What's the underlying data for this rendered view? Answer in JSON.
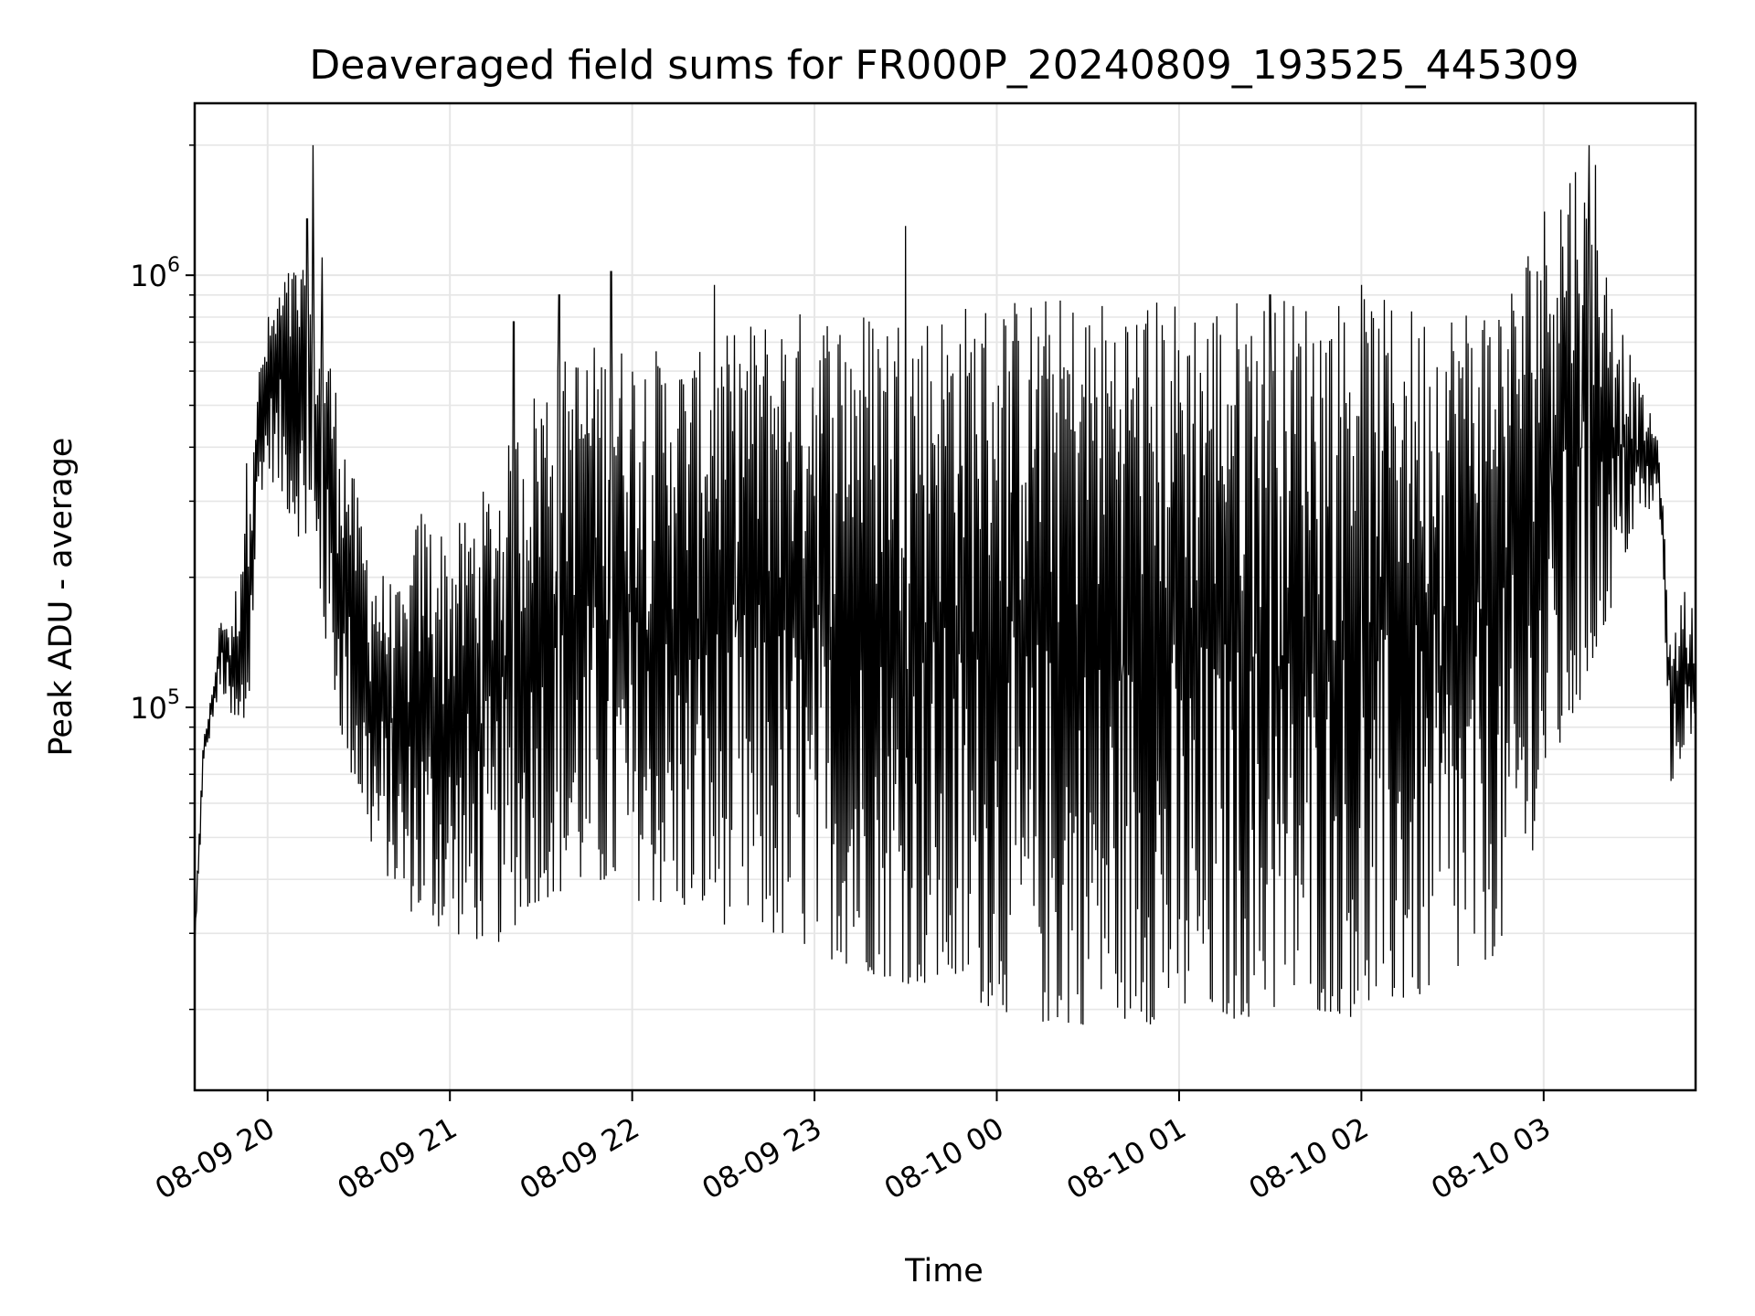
{
  "chart_data": {
    "type": "line",
    "title": "Deaveraged field sums for FR000P_20240809_193525_445309",
    "xlabel": "Time",
    "ylabel": "Peak ADU - average",
    "y_scale": "log",
    "ylim": [
      13000,
      2500000
    ],
    "xlim": [
      "2024-08-09 19:36",
      "2024-08-10 03:50"
    ],
    "y_tick_labels": [
      {
        "value": 100000,
        "base": "10",
        "exp": "5"
      },
      {
        "value": 1000000,
        "base": "10",
        "exp": "6"
      }
    ],
    "x_ticks": [
      {
        "t": "2024-08-09 20:00",
        "label": "08-09 20"
      },
      {
        "t": "2024-08-09 21:00",
        "label": "08-09 21"
      },
      {
        "t": "2024-08-09 22:00",
        "label": "08-09 22"
      },
      {
        "t": "2024-08-09 23:00",
        "label": "08-09 23"
      },
      {
        "t": "2024-08-10 00:00",
        "label": "08-10 00"
      },
      {
        "t": "2024-08-10 01:00",
        "label": "08-10 01"
      },
      {
        "t": "2024-08-10 02:00",
        "label": "08-10 02"
      },
      {
        "t": "2024-08-10 03:00",
        "label": "08-10 03"
      }
    ],
    "grid": true,
    "line_color": "#000000",
    "grid_color": "#e6e6e6",
    "series": [
      {
        "x": [
          "2024-08-09 19:36",
          "2024-08-09 19:39",
          "2024-08-09 19:42",
          "2024-08-09 19:45",
          "2024-08-09 19:48",
          "2024-08-09 19:51",
          "2024-08-09 19:54",
          "2024-08-09 19:57",
          "2024-08-09 20:00",
          "2024-08-09 20:05",
          "2024-08-09 20:10",
          "2024-08-09 20:15",
          "2024-08-09 20:20",
          "2024-08-09 20:25",
          "2024-08-09 20:30",
          "2024-08-09 20:35",
          "2024-08-09 20:40",
          "2024-08-09 20:45",
          "2024-08-09 20:50",
          "2024-08-09 21:00",
          "2024-08-09 21:15",
          "2024-08-09 21:30",
          "2024-08-09 21:45",
          "2024-08-09 22:00",
          "2024-08-09 22:20",
          "2024-08-09 22:40",
          "2024-08-09 23:00",
          "2024-08-09 23:20",
          "2024-08-09 23:40",
          "2024-08-10 00:00",
          "2024-08-10 00:20",
          "2024-08-10 00:40",
          "2024-08-10 01:00",
          "2024-08-10 01:20",
          "2024-08-10 01:40",
          "2024-08-10 02:00",
          "2024-08-10 02:20",
          "2024-08-10 02:40",
          "2024-08-10 02:50",
          "2024-08-10 03:00",
          "2024-08-10 03:10",
          "2024-08-10 03:20",
          "2024-08-10 03:30",
          "2024-08-10 03:38",
          "2024-08-10 03:42",
          "2024-08-10 03:46",
          "2024-08-10 03:50"
        ],
        "y_low": [
          27000,
          70000,
          95000,
          110000,
          90000,
          70000,
          100000,
          300000,
          350000,
          300000,
          250000,
          200000,
          130000,
          80000,
          60000,
          45000,
          40000,
          35000,
          32000,
          30000,
          28000,
          36000,
          38000,
          36000,
          33000,
          30000,
          27000,
          24000,
          22000,
          20000,
          18000,
          19000,
          18000,
          19000,
          20000,
          19000,
          21000,
          25000,
          30000,
          60000,
          90000,
          150000,
          260000,
          300000,
          65000,
          80000,
          75000
        ],
        "y_high": [
          30000,
          90000,
          110000,
          180000,
          150000,
          250000,
          450000,
          600000,
          800000,
          1000000,
          1100000,
          900000,
          700000,
          450000,
          300000,
          220000,
          200000,
          180000,
          300000,
          250000,
          350000,
          600000,
          700000,
          700000,
          650000,
          800000,
          850000,
          850000,
          850000,
          900000,
          900000,
          900000,
          900000,
          900000,
          900000,
          900000,
          850000,
          900000,
          1000000,
          1500000,
          2000000,
          1100000,
          600000,
          420000,
          130000,
          200000,
          160000
        ],
        "spikes": [
          {
            "x": "2024-08-09 20:15",
            "y": 2000000
          },
          {
            "x": "2024-08-09 20:13",
            "y": 1350000
          },
          {
            "x": "2024-08-09 20:18",
            "y": 1100000
          },
          {
            "x": "2024-08-09 21:21",
            "y": 780000
          },
          {
            "x": "2024-08-09 21:36",
            "y": 900000
          },
          {
            "x": "2024-08-09 21:53",
            "y": 1020000
          },
          {
            "x": "2024-08-09 22:27",
            "y": 950000
          },
          {
            "x": "2024-08-09 23:30",
            "y": 1300000
          },
          {
            "x": "2024-08-10 01:30",
            "y": 900000
          },
          {
            "x": "2024-08-10 02:00",
            "y": 950000
          },
          {
            "x": "2024-08-10 03:15",
            "y": 2000000
          },
          {
            "x": "2024-08-10 03:17",
            "y": 1800000
          }
        ]
      }
    ]
  }
}
